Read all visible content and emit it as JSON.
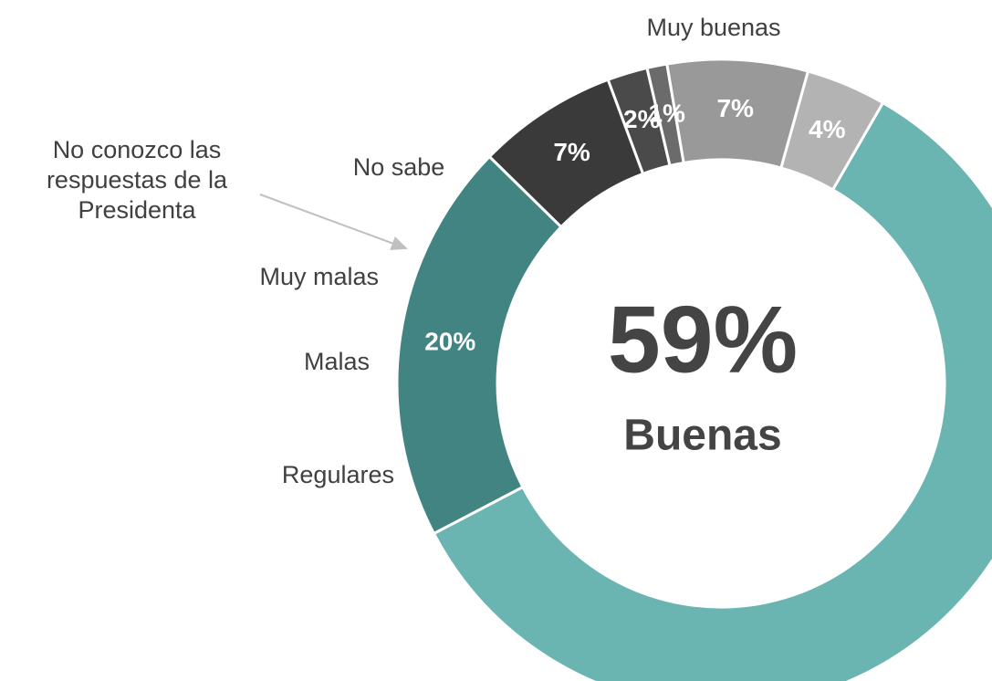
{
  "chart_data": {
    "type": "pie",
    "categories": [
      "Buenas",
      "Muy buenas",
      "No sabe",
      "No conozco las respuestas de la Presidenta",
      "Muy malas",
      "Malas",
      "Regulares"
    ],
    "values": [
      59,
      20,
      7,
      2,
      1,
      7,
      4
    ],
    "value_labels": [
      "59%",
      "20%",
      "7%",
      "2%",
      "1%",
      "7%",
      "4%"
    ],
    "colors": [
      "#6ab5b1",
      "#418481",
      "#3a3a3a",
      "#4a4a4a",
      "#6b6b6b",
      "#999999",
      "#b3b3b3"
    ]
  }
}
